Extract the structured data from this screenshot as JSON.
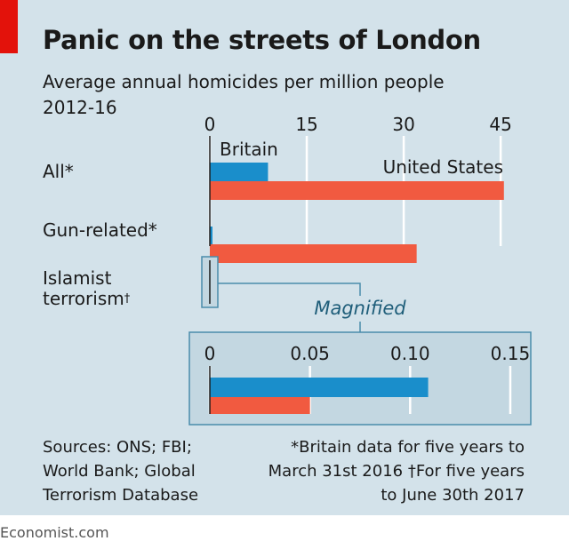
{
  "title": "Panic on the streets of London",
  "subtitle_line1": "Average annual homicides per million people",
  "subtitle_line2": "2012-16",
  "categories": {
    "all": "All*",
    "gun": "Gun-related*",
    "islamist_line1": "Islamist",
    "islamist_line2": "terrorism",
    "islamist_mark": "†"
  },
  "magnified_label": "Magnified",
  "sources": {
    "line1": "Sources: ONS; FBI;",
    "line2": "World Bank; Global",
    "line3": "Terrorism Database"
  },
  "notes": {
    "line1": "*Britain data for five years to",
    "line2": "March 31st 2016  †For five years",
    "line3": "to June 30th 2017"
  },
  "brand": "Economist.com",
  "colors": {
    "britain": "#1a8ecb",
    "united_states": "#f15a40",
    "panel": "#d3e2ea",
    "accent": "#e3120b"
  },
  "chart_data": [
    {
      "type": "bar",
      "orientation": "horizontal",
      "categories": [
        "All*",
        "Gun-related*"
      ],
      "series": [
        {
          "name": "Britain",
          "values": [
            9.0,
            0.3
          ]
        },
        {
          "name": "United States",
          "values": [
            45.5,
            32.0
          ]
        }
      ],
      "xlim": [
        0,
        47
      ],
      "ticks": [
        "0",
        "15",
        "30",
        "45"
      ],
      "tick_values": [
        0,
        15,
        30,
        45
      ],
      "grid": true
    },
    {
      "type": "bar",
      "orientation": "horizontal",
      "categories": [
        "Islamist terrorism†"
      ],
      "series": [
        {
          "name": "Britain",
          "values": [
            0.109
          ]
        },
        {
          "name": "United States",
          "values": [
            0.05
          ]
        }
      ],
      "xlim": [
        0,
        0.17
      ],
      "ticks": [
        "0",
        "0.05",
        "0.10",
        "0.15"
      ],
      "tick_values": [
        0,
        0.05,
        0.1,
        0.15
      ],
      "grid": true
    }
  ]
}
